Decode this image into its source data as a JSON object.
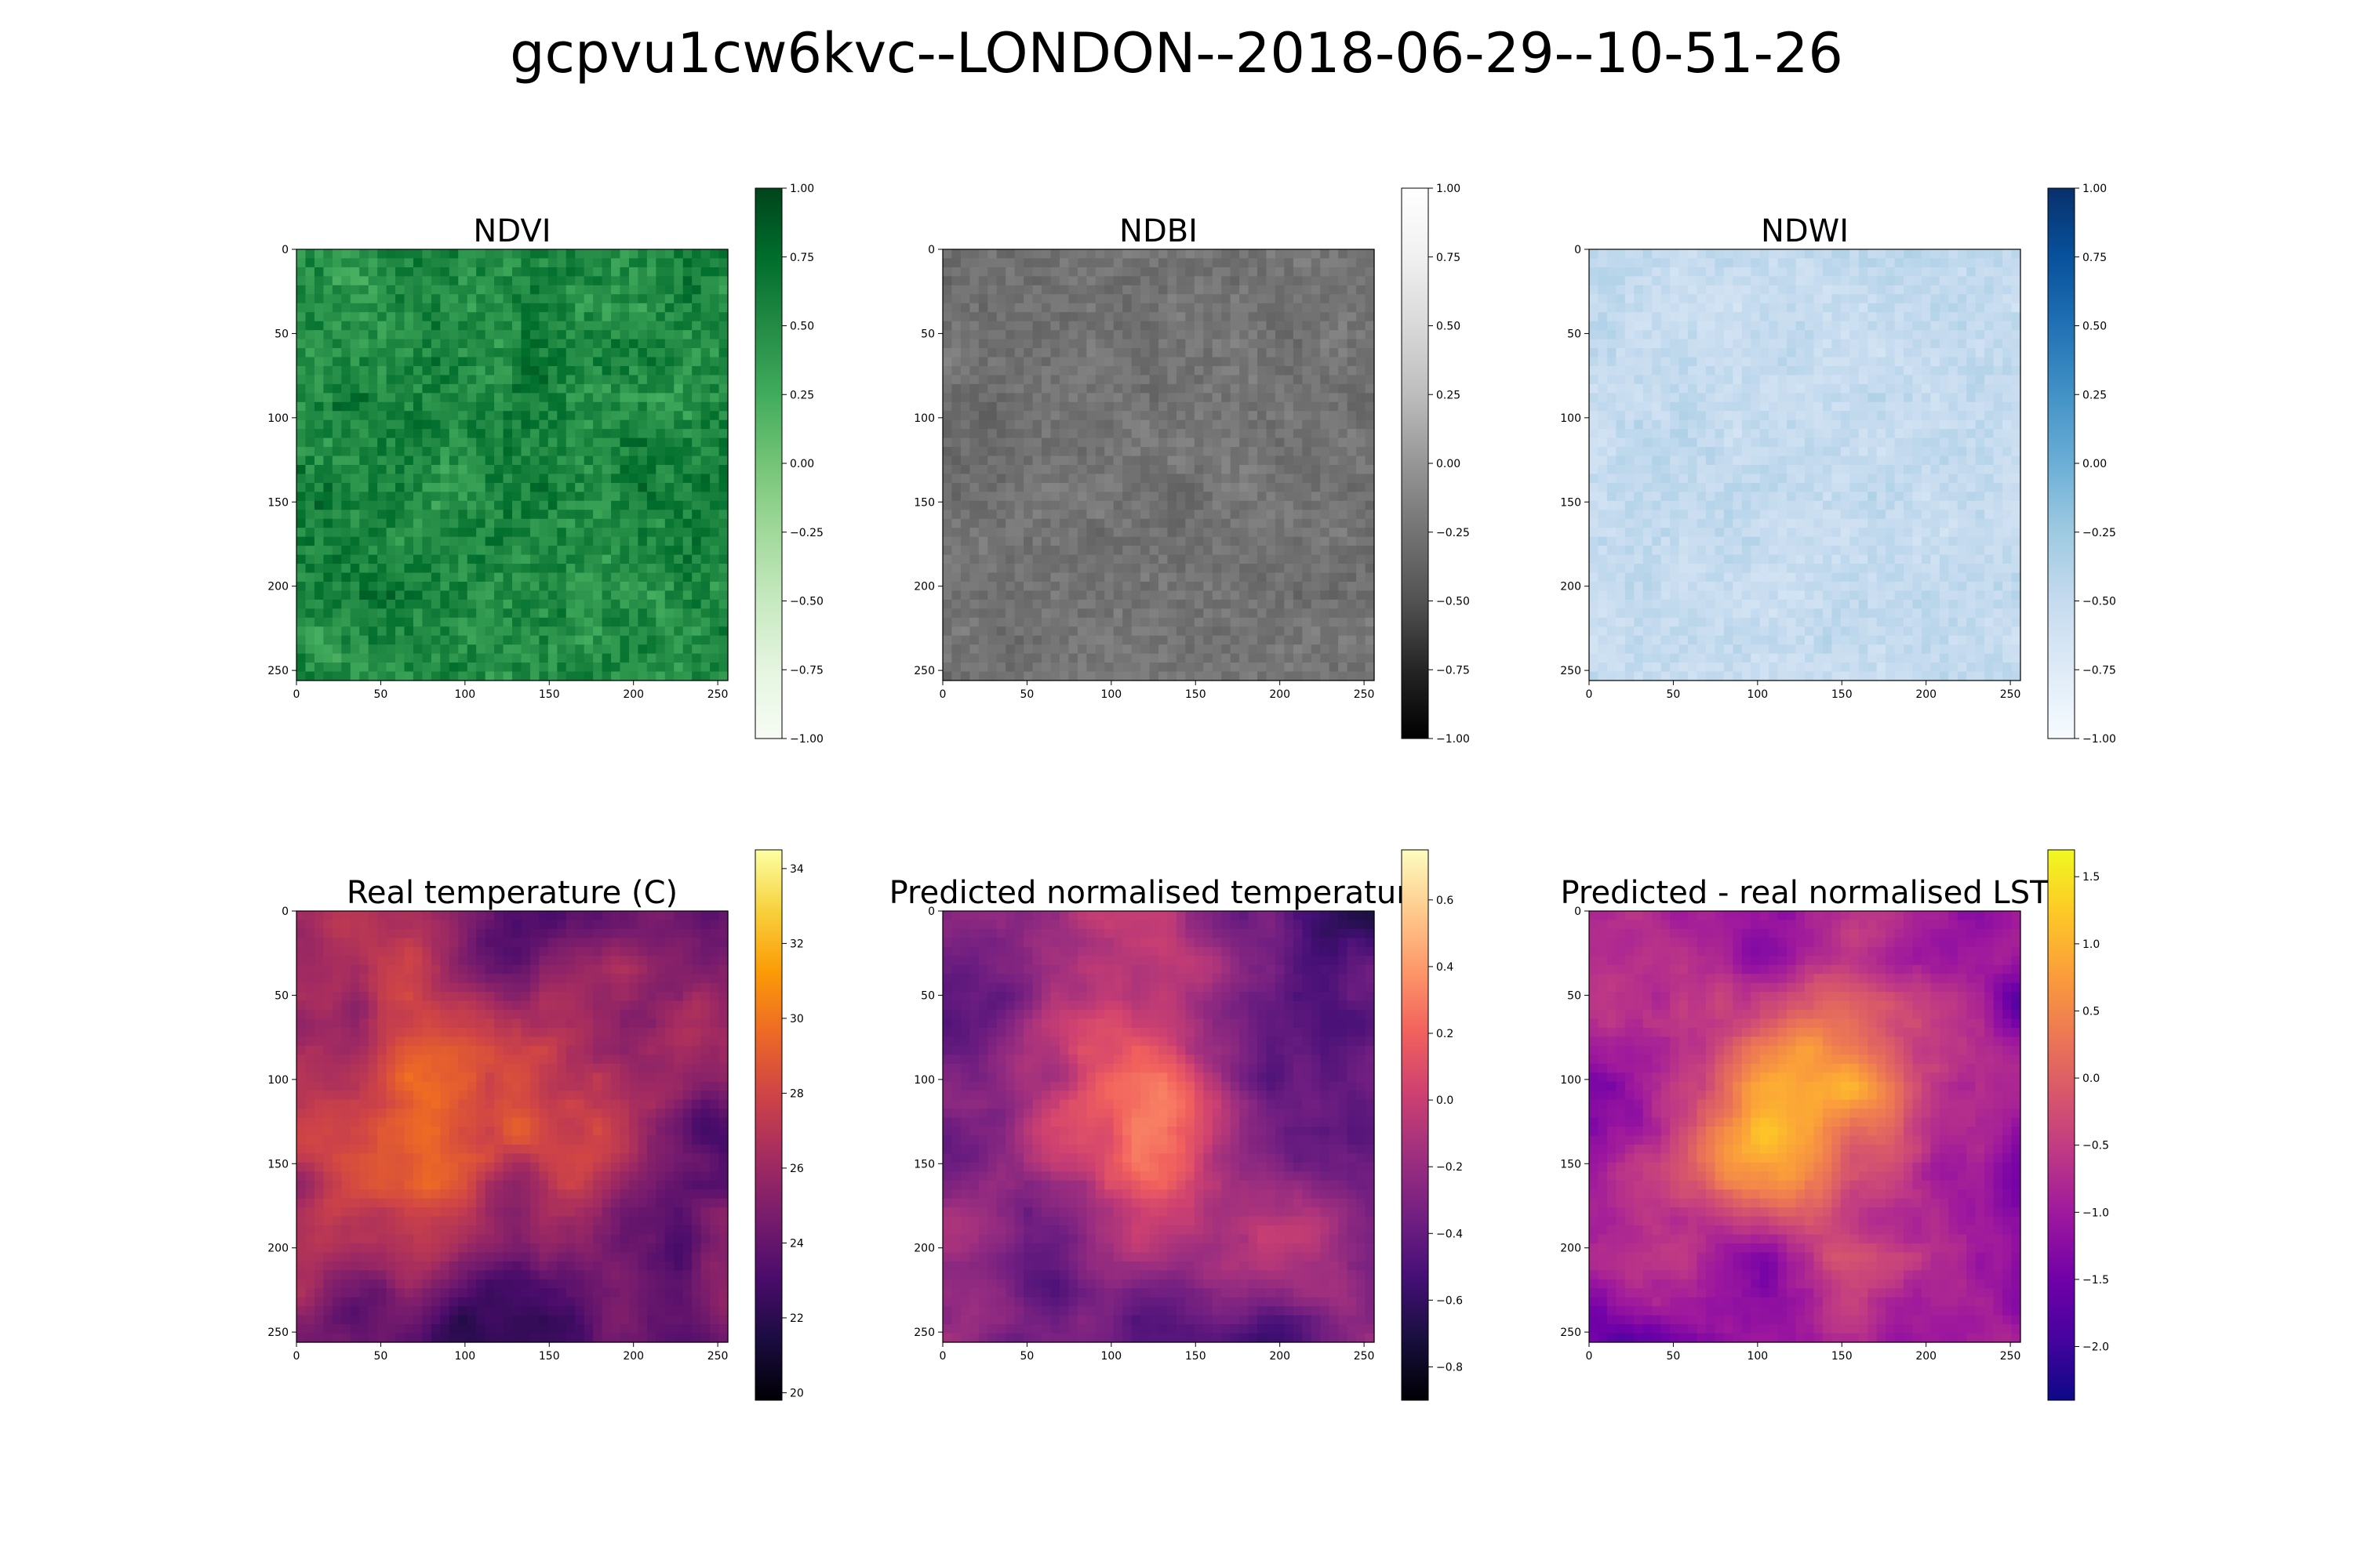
{
  "figure": {
    "title": "gcpvu1cw6kvc--LONDON--2018-06-29--10-51-26"
  },
  "chart_data": [
    {
      "type": "heatmap",
      "id": "ndvi",
      "title": "NDVI",
      "colormap": "Greens",
      "xlim": [
        0,
        256
      ],
      "ylim": [
        256,
        0
      ],
      "xticks": [
        "0",
        "50",
        "100",
        "150",
        "200",
        "250"
      ],
      "yticks": [
        "0",
        "50",
        "100",
        "150",
        "200",
        "250"
      ],
      "clim": [
        -1.0,
        1.0
      ],
      "cbar_ticks": [
        "1.00",
        "0.75",
        "0.50",
        "0.25",
        "0.00",
        "−0.25",
        "−0.50",
        "−0.75",
        "−1.00"
      ],
      "value_range_shown": [
        0.1,
        0.95
      ]
    },
    {
      "type": "heatmap",
      "id": "ndbi",
      "title": "NDBI",
      "colormap": "Greys_r",
      "xlim": [
        0,
        256
      ],
      "ylim": [
        256,
        0
      ],
      "xticks": [
        "0",
        "50",
        "100",
        "150",
        "200",
        "250"
      ],
      "yticks": [
        "0",
        "50",
        "100",
        "150",
        "200",
        "250"
      ],
      "clim": [
        -1.0,
        1.0
      ],
      "cbar_ticks": [
        "1.00",
        "0.75",
        "0.50",
        "0.25",
        "0.00",
        "−0.25",
        "−0.50",
        "−0.75",
        "−1.00"
      ],
      "value_range_shown": [
        -0.45,
        -0.05
      ]
    },
    {
      "type": "heatmap",
      "id": "ndwi",
      "title": "NDWI",
      "colormap": "Blues",
      "xlim": [
        0,
        256
      ],
      "ylim": [
        256,
        0
      ],
      "xticks": [
        "0",
        "50",
        "100",
        "150",
        "200",
        "250"
      ],
      "yticks": [
        "0",
        "50",
        "100",
        "150",
        "200",
        "250"
      ],
      "clim": [
        -1.0,
        1.0
      ],
      "cbar_ticks": [
        "1.00",
        "0.75",
        "0.50",
        "0.25",
        "0.00",
        "−0.25",
        "−0.50",
        "−0.75",
        "−1.00"
      ],
      "value_range_shown": [
        -0.7,
        -0.3
      ]
    },
    {
      "type": "heatmap",
      "id": "real_temp",
      "title": "Real temperature (C)",
      "colormap": "inferno",
      "xlim": [
        0,
        256
      ],
      "ylim": [
        256,
        0
      ],
      "xticks": [
        "0",
        "50",
        "100",
        "150",
        "200",
        "250"
      ],
      "yticks": [
        "0",
        "50",
        "100",
        "150",
        "200",
        "250"
      ],
      "clim": [
        19.8,
        34.5
      ],
      "cbar_ticks": [
        "34",
        "32",
        "30",
        "28",
        "26",
        "24",
        "22",
        "20"
      ],
      "value_range_shown": [
        20,
        34
      ]
    },
    {
      "type": "heatmap",
      "id": "pred_temp",
      "title": "Predicted normalised temperature",
      "colormap": "magma",
      "xlim": [
        0,
        256
      ],
      "ylim": [
        256,
        0
      ],
      "xticks": [
        "0",
        "50",
        "100",
        "150",
        "200",
        "250"
      ],
      "yticks": [
        "0",
        "50",
        "100",
        "150",
        "200",
        "250"
      ],
      "clim": [
        -0.9,
        0.75
      ],
      "cbar_ticks": [
        "0.6",
        "0.4",
        "0.2",
        "0.0",
        "−0.2",
        "−0.4",
        "−0.6",
        "−0.8"
      ],
      "value_range_shown": [
        -0.85,
        0.7
      ]
    },
    {
      "type": "heatmap",
      "id": "diff",
      "title": "Predicted - real normalised LST",
      "colormap": "plasma",
      "xlim": [
        0,
        256
      ],
      "ylim": [
        256,
        0
      ],
      "xticks": [
        "0",
        "50",
        "100",
        "150",
        "200",
        "250"
      ],
      "yticks": [
        "0",
        "50",
        "100",
        "150",
        "200",
        "250"
      ],
      "clim": [
        -2.4,
        1.7
      ],
      "cbar_ticks": [
        "1.5",
        "1.0",
        "0.5",
        "0.0",
        "−0.5",
        "−1.0",
        "−1.5",
        "−2.0"
      ],
      "value_range_shown": [
        -2.3,
        1.6
      ]
    }
  ]
}
